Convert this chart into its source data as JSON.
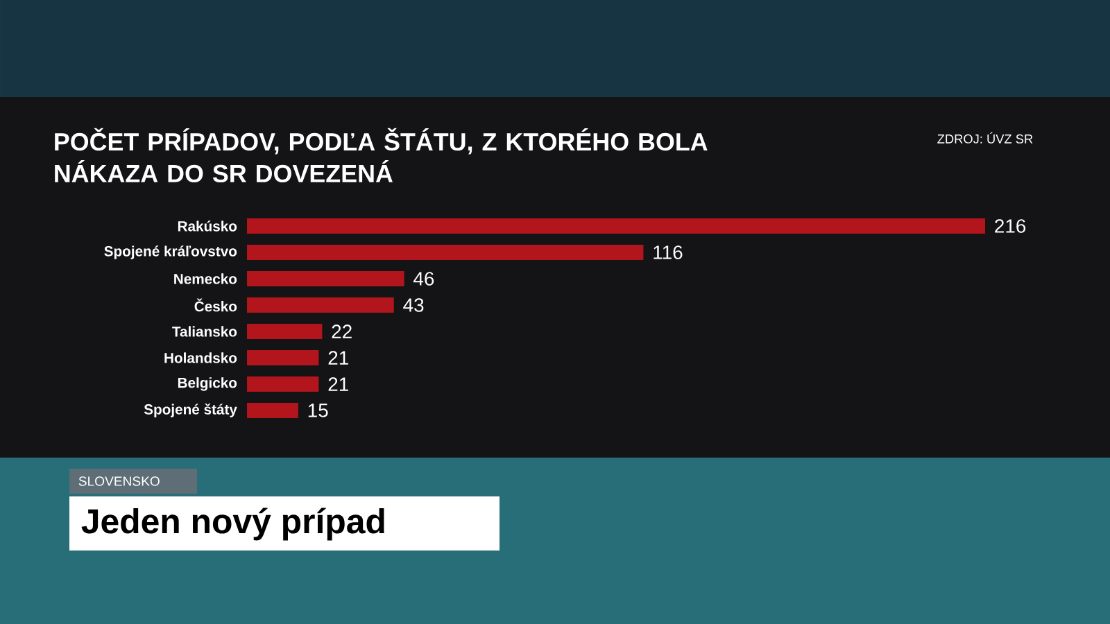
{
  "chart_data": {
    "type": "bar",
    "orientation": "horizontal",
    "title": "POČET PRÍPADOV, PODĽA ŠTÁTU, Z KTORÉHO BOLA NÁKAZA DO SR DOVEZENÁ",
    "categories": [
      "Rakúsko",
      "Spojené kráľovstvo",
      "Nemecko",
      "Česko",
      "Taliansko",
      "Holandsko",
      "Belgicko",
      "Spojené štáty"
    ],
    "values": [
      216,
      116,
      46,
      43,
      22,
      21,
      21,
      15
    ],
    "color": "#b3151c",
    "data_labels": true,
    "annotations": [
      "ZDROJ: ÚVZ SR",
      "SLOVENSKO",
      "Jeden nový prípad"
    ]
  }
}
